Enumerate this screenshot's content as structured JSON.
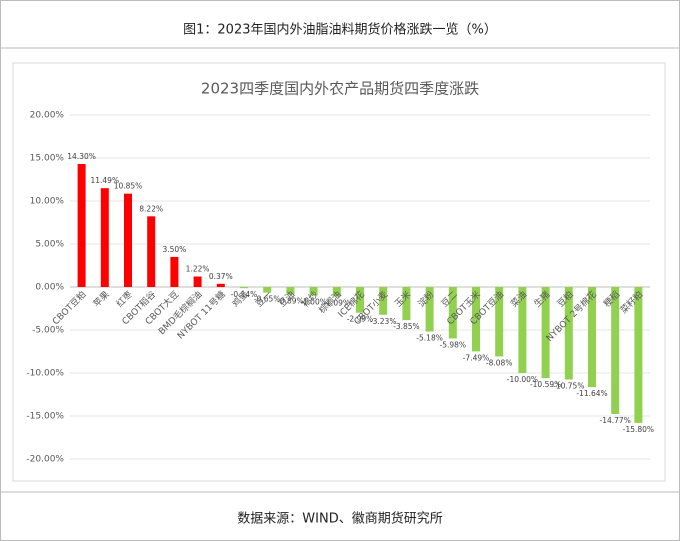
{
  "header": {
    "title": "图1：2023年国内外油脂油料期货价格涨跌一览（%）"
  },
  "chart_data": {
    "type": "bar",
    "title": "2023四季度国内外农产品期货四季度涨跌",
    "categories": [
      "CBOT豆粕",
      "苹果",
      "红枣",
      "CBOT稻谷",
      "CBOT大豆",
      "BMD毛棕榈油",
      "NYBOT 11号糖",
      "鸡蛋",
      "豆一",
      "豆油",
      "棉纱",
      "棕榈油",
      "ICE棉花",
      "CBOT小麦",
      "玉米",
      "淀粉",
      "豆二",
      "CBOT玉米",
      "CBOT豆油",
      "菜油",
      "生猪",
      "豆粕",
      "NYBOT 2号棉花",
      "粳稻",
      "菜籽粕"
    ],
    "values": [
      14.3,
      11.49,
      10.85,
      8.22,
      3.5,
      1.22,
      0.37,
      -0.14,
      -0.65,
      -0.89,
      -1.0,
      -1.09,
      -2.99,
      -3.23,
      -3.85,
      -5.18,
      -5.98,
      -7.49,
      -8.08,
      -10.0,
      -10.59,
      -10.75,
      -11.64,
      -14.77,
      -15.8
    ],
    "value_labels": [
      "14.30%",
      "11.49%",
      "10.85%",
      "8.22%",
      "3.50%",
      "1.22%",
      "0.37%",
      "-0.14%",
      "-0.65%",
      "-0.89%",
      "-1.00%",
      "-1.09%",
      "-2.99%",
      "-3.23%",
      "-3.85%",
      "-5.18%",
      "-5.98%",
      "-7.49%",
      "-8.08%",
      "-10.00%",
      "-10.59%",
      "-10.75%",
      "-11.64%",
      "-14.77%",
      "-15.80%"
    ],
    "positive_color": "#ff0000",
    "negative_color": "#92d050",
    "ylim": [
      -20,
      20
    ],
    "yticks": [
      {
        "value": -20,
        "label": "-20.00%"
      },
      {
        "value": -15,
        "label": "-15.00%"
      },
      {
        "value": -10,
        "label": "-10.00%"
      },
      {
        "value": -5,
        "label": "-5.00%"
      },
      {
        "value": 0,
        "label": "0.00%"
      },
      {
        "value": 5,
        "label": "5.00%"
      },
      {
        "value": 10,
        "label": "10.00%"
      },
      {
        "value": 15,
        "label": "15.00%"
      },
      {
        "value": 20,
        "label": "20.00%"
      }
    ],
    "grid": true
  },
  "footer": {
    "source": "数据来源：WIND、徽商期货研究所"
  }
}
